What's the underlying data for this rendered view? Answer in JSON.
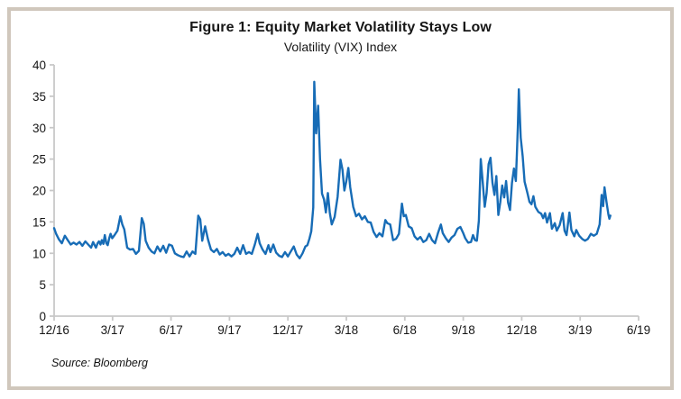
{
  "figure": {
    "title": "Figure 1: Equity Market Volatility Stays Low",
    "subtitle": "Volatility (VIX) Index",
    "source": "Source: Bloomberg"
  },
  "colors": {
    "line": "#176cb6",
    "axis": "#c8c8c8",
    "text": "#161616",
    "border": "#d0c7bc"
  },
  "chart_data": {
    "type": "line",
    "title": "Figure 1: Equity Market Volatility Stays Low",
    "subtitle": "Volatility (VIX) Index",
    "series_name": "VIX Index",
    "source": "Source: Bloomberg",
    "x_unit": "months since 12/16 tick",
    "x_tick_labels": [
      "12/16",
      "3/17",
      "6/17",
      "9/17",
      "12/17",
      "3/18",
      "6/18",
      "9/18",
      "12/18",
      "3/19",
      "6/19"
    ],
    "x_tick_months": [
      0,
      3,
      6,
      9,
      12,
      15,
      18,
      21,
      24,
      27,
      30
    ],
    "y_ticks": [
      0,
      5,
      10,
      15,
      20,
      25,
      30,
      35,
      40
    ],
    "xlim_months": [
      0,
      30
    ],
    "ylim": [
      0,
      40
    ],
    "grid": false,
    "legend": "none",
    "points": [
      [
        0,
        14
      ],
      [
        0.1,
        13.1
      ],
      [
        0.25,
        12.2
      ],
      [
        0.4,
        11.6
      ],
      [
        0.55,
        12.8
      ],
      [
        0.7,
        12.1
      ],
      [
        0.85,
        11.4
      ],
      [
        1,
        11.7
      ],
      [
        1.15,
        11.4
      ],
      [
        1.3,
        11.8
      ],
      [
        1.45,
        11.2
      ],
      [
        1.6,
        11.9
      ],
      [
        1.75,
        11.4
      ],
      [
        1.9,
        10.9
      ],
      [
        2,
        11.8
      ],
      [
        2.08,
        11.3
      ],
      [
        2.15,
        10.9
      ],
      [
        2.23,
        11.6
      ],
      [
        2.3,
        11.9
      ],
      [
        2.38,
        11.4
      ],
      [
        2.45,
        12.1
      ],
      [
        2.53,
        11.5
      ],
      [
        2.6,
        12.9
      ],
      [
        2.68,
        11.6
      ],
      [
        2.75,
        11.3
      ],
      [
        2.83,
        12.4
      ],
      [
        2.9,
        13.1
      ],
      [
        2.98,
        12.4
      ],
      [
        3.1,
        12.9
      ],
      [
        3.25,
        13.6
      ],
      [
        3.4,
        15.9
      ],
      [
        3.5,
        14.6
      ],
      [
        3.6,
        13.8
      ],
      [
        3.75,
        10.9
      ],
      [
        3.9,
        10.6
      ],
      [
        4.05,
        10.7
      ],
      [
        4.2,
        9.9
      ],
      [
        4.35,
        10.4
      ],
      [
        4.5,
        15.6
      ],
      [
        4.6,
        14.7
      ],
      [
        4.7,
        12
      ],
      [
        4.85,
        10.9
      ],
      [
        5,
        10.3
      ],
      [
        5.15,
        10
      ],
      [
        5.3,
        11.1
      ],
      [
        5.45,
        10.3
      ],
      [
        5.6,
        11.2
      ],
      [
        5.75,
        10.1
      ],
      [
        5.9,
        11.4
      ],
      [
        6.05,
        11.2
      ],
      [
        6.2,
        10
      ],
      [
        6.35,
        9.7
      ],
      [
        6.5,
        9.5
      ],
      [
        6.65,
        9.4
      ],
      [
        6.8,
        10.3
      ],
      [
        6.95,
        9.5
      ],
      [
        7.1,
        10.3
      ],
      [
        7.25,
        9.9
      ],
      [
        7.4,
        16
      ],
      [
        7.5,
        15.4
      ],
      [
        7.6,
        12
      ],
      [
        7.75,
        14.3
      ],
      [
        7.9,
        12.2
      ],
      [
        8.05,
        10.6
      ],
      [
        8.2,
        10.2
      ],
      [
        8.35,
        10.7
      ],
      [
        8.5,
        9.8
      ],
      [
        8.65,
        10.2
      ],
      [
        8.8,
        9.6
      ],
      [
        8.95,
        9.9
      ],
      [
        9.1,
        9.5
      ],
      [
        9.25,
        9.9
      ],
      [
        9.4,
        10.9
      ],
      [
        9.55,
        9.9
      ],
      [
        9.7,
        11.3
      ],
      [
        9.85,
        9.9
      ],
      [
        10,
        10.2
      ],
      [
        10.15,
        9.9
      ],
      [
        10.3,
        11.4
      ],
      [
        10.45,
        13.1
      ],
      [
        10.55,
        11.6
      ],
      [
        10.7,
        10.6
      ],
      [
        10.85,
        9.9
      ],
      [
        11,
        11.3
      ],
      [
        11.1,
        10.2
      ],
      [
        11.25,
        11.4
      ],
      [
        11.4,
        10.1
      ],
      [
        11.55,
        9.6
      ],
      [
        11.7,
        9.4
      ],
      [
        11.85,
        10.2
      ],
      [
        12,
        9.5
      ],
      [
        12.15,
        10.3
      ],
      [
        12.3,
        11.1
      ],
      [
        12.45,
        9.8
      ],
      [
        12.6,
        9.2
      ],
      [
        12.75,
        10
      ],
      [
        12.9,
        11.1
      ],
      [
        13,
        11.3
      ],
      [
        13.1,
        12.3
      ],
      [
        13.2,
        13.5
      ],
      [
        13.3,
        17.3
      ],
      [
        13.35,
        37.3
      ],
      [
        13.45,
        29.1
      ],
      [
        13.55,
        33.5
      ],
      [
        13.65,
        25
      ],
      [
        13.75,
        19.5
      ],
      [
        13.85,
        18.6
      ],
      [
        13.95,
        16.5
      ],
      [
        14.05,
        19.6
      ],
      [
        14.15,
        16.5
      ],
      [
        14.25,
        14.6
      ],
      [
        14.4,
        15.8
      ],
      [
        14.55,
        19
      ],
      [
        14.7,
        24.9
      ],
      [
        14.8,
        23.3
      ],
      [
        14.9,
        20
      ],
      [
        15,
        21.5
      ],
      [
        15.1,
        23.6
      ],
      [
        15.2,
        20.5
      ],
      [
        15.35,
        17.4
      ],
      [
        15.5,
        15.9
      ],
      [
        15.65,
        16.3
      ],
      [
        15.8,
        15.4
      ],
      [
        15.95,
        15.9
      ],
      [
        16.1,
        15
      ],
      [
        16.25,
        14.9
      ],
      [
        16.4,
        13.4
      ],
      [
        16.55,
        12.6
      ],
      [
        16.7,
        13.2
      ],
      [
        16.85,
        12.7
      ],
      [
        17,
        15.3
      ],
      [
        17.1,
        14.8
      ],
      [
        17.25,
        14.6
      ],
      [
        17.4,
        12.1
      ],
      [
        17.55,
        12.3
      ],
      [
        17.7,
        13.1
      ],
      [
        17.85,
        17.9
      ],
      [
        17.95,
        15.9
      ],
      [
        18.05,
        16.1
      ],
      [
        18.2,
        14.3
      ],
      [
        18.35,
        14
      ],
      [
        18.5,
        12.7
      ],
      [
        18.65,
        12.2
      ],
      [
        18.8,
        12.6
      ],
      [
        18.95,
        11.8
      ],
      [
        19.1,
        12.1
      ],
      [
        19.25,
        13.1
      ],
      [
        19.4,
        12.1
      ],
      [
        19.55,
        11.6
      ],
      [
        19.7,
        13.2
      ],
      [
        19.85,
        14.6
      ],
      [
        19.95,
        13.2
      ],
      [
        20.1,
        12.4
      ],
      [
        20.25,
        11.8
      ],
      [
        20.4,
        12.5
      ],
      [
        20.55,
        12.9
      ],
      [
        20.7,
        13.9
      ],
      [
        20.85,
        14.2
      ],
      [
        21,
        13.2
      ],
      [
        21.1,
        12.4
      ],
      [
        21.25,
        11.7
      ],
      [
        21.4,
        11.8
      ],
      [
        21.5,
        12.9
      ],
      [
        21.6,
        12.1
      ],
      [
        21.7,
        12
      ],
      [
        21.8,
        15.2
      ],
      [
        21.9,
        25
      ],
      [
        22,
        21.3
      ],
      [
        22.1,
        17.4
      ],
      [
        22.2,
        19.6
      ],
      [
        22.3,
        24.2
      ],
      [
        22.4,
        25.2
      ],
      [
        22.5,
        21.2
      ],
      [
        22.6,
        19.3
      ],
      [
        22.7,
        22.3
      ],
      [
        22.8,
        16.1
      ],
      [
        22.9,
        18.1
      ],
      [
        23,
        20.8
      ],
      [
        23.1,
        18.9
      ],
      [
        23.2,
        21.5
      ],
      [
        23.3,
        18.1
      ],
      [
        23.4,
        16.9
      ],
      [
        23.5,
        21.2
      ],
      [
        23.6,
        23.5
      ],
      [
        23.7,
        21.5
      ],
      [
        23.75,
        25.6
      ],
      [
        23.8,
        30.1
      ],
      [
        23.85,
        36.1
      ],
      [
        23.95,
        28.4
      ],
      [
        24.05,
        25.4
      ],
      [
        24.15,
        21.4
      ],
      [
        24.3,
        19.5
      ],
      [
        24.4,
        18.2
      ],
      [
        24.5,
        17.8
      ],
      [
        24.6,
        19.1
      ],
      [
        24.7,
        17.4
      ],
      [
        24.85,
        16.6
      ],
      [
        25,
        16.3
      ],
      [
        25.1,
        15.6
      ],
      [
        25.2,
        16.4
      ],
      [
        25.3,
        14.9
      ],
      [
        25.45,
        16.4
      ],
      [
        25.55,
        13.9
      ],
      [
        25.7,
        14.8
      ],
      [
        25.8,
        13.6
      ],
      [
        25.95,
        14.5
      ],
      [
        26.1,
        16.4
      ],
      [
        26.2,
        13.6
      ],
      [
        26.3,
        12.9
      ],
      [
        26.45,
        16.5
      ],
      [
        26.55,
        13.7
      ],
      [
        26.7,
        12.7
      ],
      [
        26.8,
        13.7
      ],
      [
        26.95,
        12.8
      ],
      [
        27.1,
        12.3
      ],
      [
        27.25,
        12
      ],
      [
        27.4,
        12.3
      ],
      [
        27.55,
        13.1
      ],
      [
        27.7,
        12.8
      ],
      [
        27.85,
        13.1
      ],
      [
        28,
        14.6
      ],
      [
        28.1,
        19.3
      ],
      [
        28.18,
        17.5
      ],
      [
        28.25,
        20.5
      ],
      [
        28.35,
        18.2
      ],
      [
        28.45,
        16.2
      ],
      [
        28.5,
        15.5
      ],
      [
        28.55,
        16
      ]
    ]
  }
}
